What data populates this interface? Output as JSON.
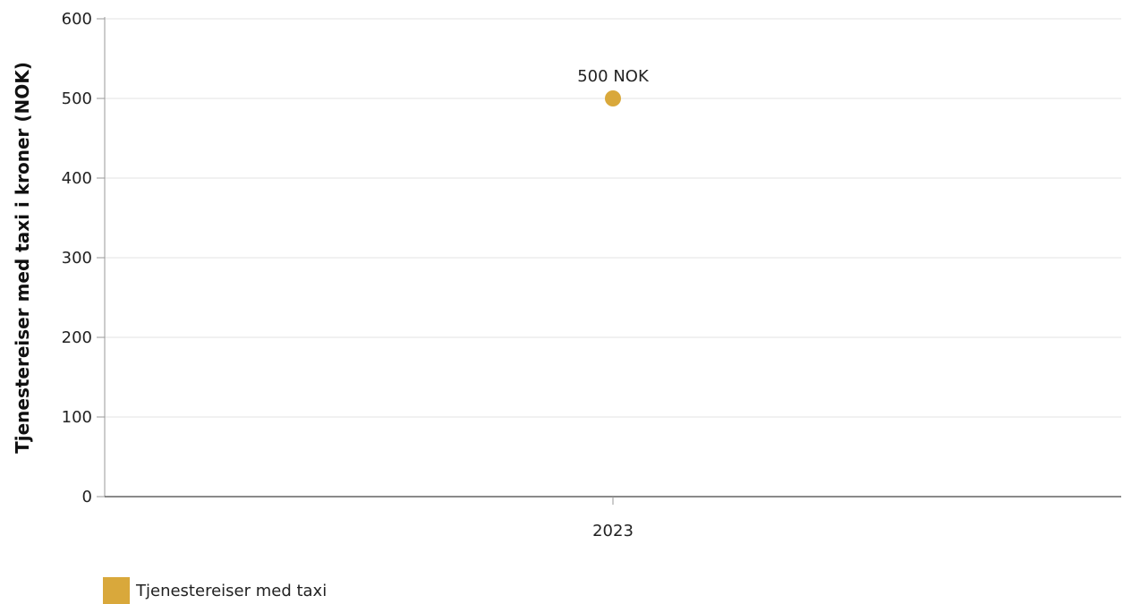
{
  "chart_data": {
    "type": "scatter",
    "categories": [
      "2023"
    ],
    "series": [
      {
        "name": "Tjenestereiser med taxi",
        "values": [
          500
        ],
        "color": "#D9A83B"
      }
    ],
    "data_labels": [
      "500 NOK"
    ],
    "ylabel": "Tjenestereiser med taxi i kroner (NOK)",
    "ylim": [
      0,
      600
    ],
    "yticks": [
      0,
      100,
      200,
      300,
      400,
      500,
      600
    ],
    "grid": true,
    "legend": "bottom-left"
  }
}
